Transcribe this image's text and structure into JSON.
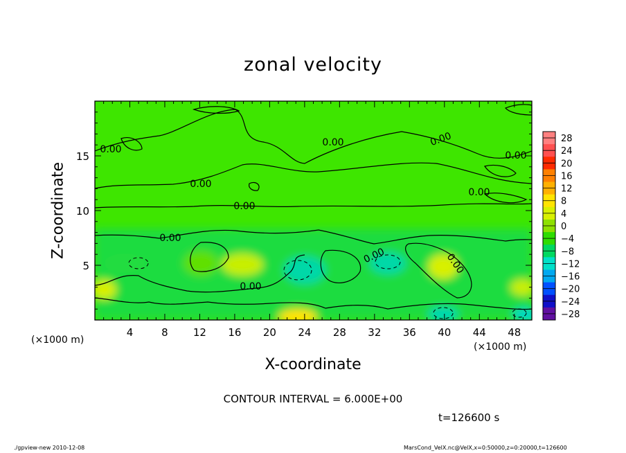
{
  "chart_data": {
    "type": "heatmap",
    "title": "zonal velocity",
    "xlabel": "X-coordinate",
    "ylabel": "Z-coordinate",
    "x_unit": "(×1000 m)",
    "y_unit": "(×1000 m)",
    "xlim": [
      0,
      50
    ],
    "ylim": [
      0,
      20
    ],
    "x_ticks": [
      4,
      8,
      12,
      16,
      20,
      24,
      28,
      32,
      36,
      40,
      44,
      48
    ],
    "y_ticks": [
      5,
      10,
      15
    ],
    "colorbar": {
      "levels": [
        28,
        24,
        20,
        16,
        12,
        8,
        4,
        0,
        -4,
        -8,
        -12,
        -16,
        -20,
        -24,
        -28
      ],
      "colors": [
        "#ff8080",
        "#ff5050",
        "#ff2a00",
        "#ff8000",
        "#ffb000",
        "#ffe400",
        "#d8f000",
        "#8ee000",
        "#2edc00",
        "#00d860",
        "#00e0c8",
        "#00a8f0",
        "#0050ff",
        "#1010c8",
        "#6010a0"
      ]
    },
    "contour_labels": [
      "0.00",
      "0.00",
      "0.00",
      "0.00",
      "0.00",
      "0.00",
      "0.00",
      "0.00",
      "0.00",
      "0.00",
      "0.00"
    ],
    "contour_interval": "CONTOUR INTERVAL = 6.000E+00",
    "time": "t=126600 s"
  },
  "footer": {
    "left": "./gpview-new   2010-12-08",
    "right": "MarsCond_VelX.nc@VelX,x=0:50000,z=0:20000,t=126600"
  }
}
